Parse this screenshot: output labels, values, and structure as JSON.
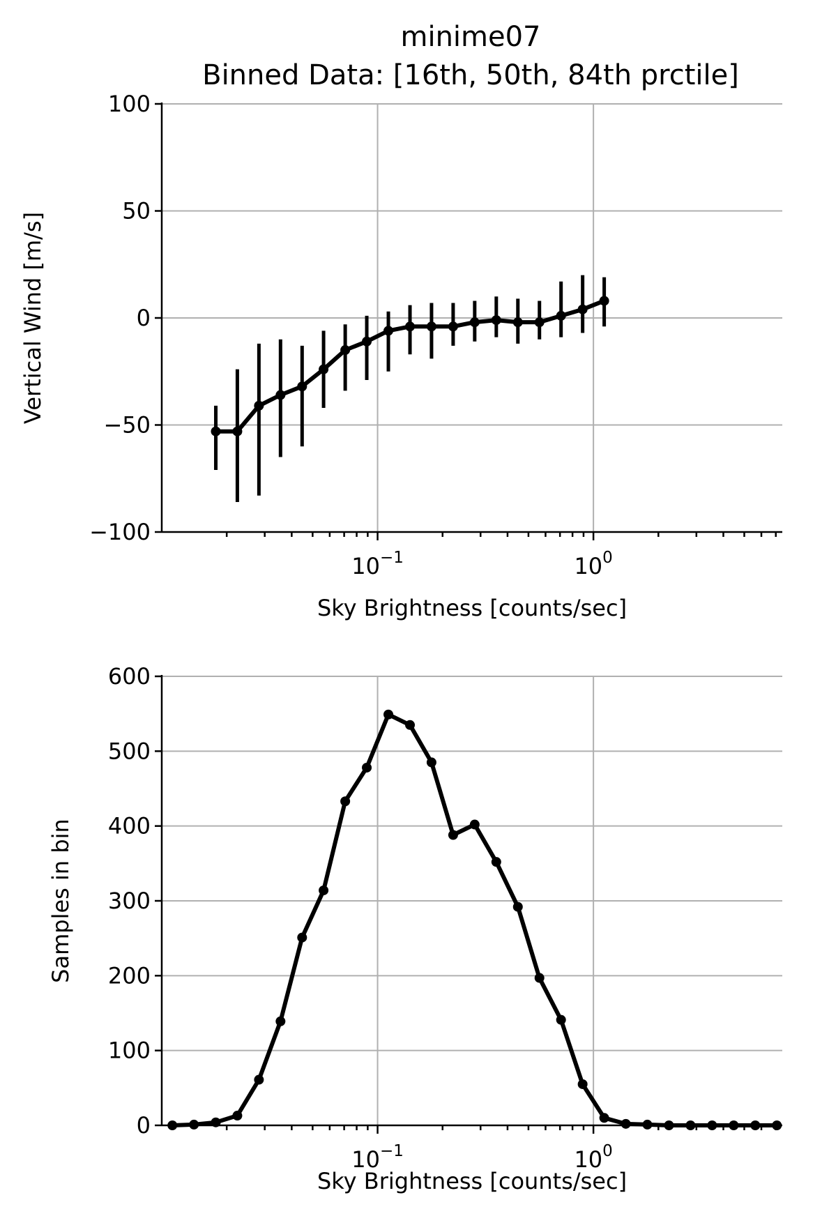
{
  "figure": {
    "title_line1": "minime07",
    "title_line2": "Binned Data: [16th, 50th, 84th prctile]"
  },
  "chart_data": [
    {
      "type": "line",
      "xscale": "log",
      "xlabel": "Sky Brightness [counts/sec]",
      "ylabel": "Vertical Wind [m/s]",
      "xlim": [
        0.01,
        7.5
      ],
      "ylim": [
        -100,
        100
      ],
      "yticks": [
        100,
        50,
        0,
        -50,
        -100
      ],
      "ytick_labels": [
        "100",
        "50",
        "0",
        "−50",
        "−100"
      ],
      "xticks": [
        0.1,
        1
      ],
      "xtick_labels": [
        {
          "base": "10",
          "exp": "−1"
        },
        {
          "base": "10",
          "exp": "0"
        }
      ],
      "grid": true,
      "series": [
        {
          "x": [
            0.0178,
            0.0224,
            0.0282,
            0.0355,
            0.0447,
            0.0562,
            0.0708,
            0.0891,
            0.1122,
            0.1413,
            0.1778,
            0.2239,
            0.2818,
            0.3548,
            0.4467,
            0.5623,
            0.7079,
            0.8913,
            1.122
          ],
          "y": [
            -53,
            -53,
            -41,
            -36,
            -32,
            -24,
            -15,
            -11,
            -6,
            -4,
            -4,
            -4,
            -2,
            -1,
            -2,
            -2,
            1,
            4,
            8
          ],
          "err_low": [
            -71,
            -86,
            -83,
            -65,
            -60,
            -42,
            -34,
            -29,
            -25,
            -17,
            -19,
            -13,
            -11,
            -9,
            -12,
            -10,
            -9,
            -7,
            -4
          ],
          "err_high": [
            -41,
            -24,
            -12,
            -10,
            -13,
            -6,
            -3,
            1,
            3,
            6,
            7,
            7,
            8,
            10,
            9,
            8,
            17,
            20,
            19
          ]
        }
      ]
    },
    {
      "type": "line",
      "xscale": "log",
      "xlabel": "Sky Brightness [counts/sec]",
      "ylabel": "Samples in bin",
      "xlim": [
        0.01,
        7.5
      ],
      "ylim": [
        0,
        600
      ],
      "yticks": [
        600,
        500,
        400,
        300,
        200,
        100,
        0
      ],
      "ytick_labels": [
        "600",
        "500",
        "400",
        "300",
        "200",
        "100",
        "0"
      ],
      "xticks": [
        0.1,
        1
      ],
      "xtick_labels": [
        {
          "base": "10",
          "exp": "−1"
        },
        {
          "base": "10",
          "exp": "0"
        }
      ],
      "grid": true,
      "series": [
        {
          "x": [
            0.0112,
            0.0141,
            0.0178,
            0.0224,
            0.0282,
            0.0355,
            0.0447,
            0.0562,
            0.0708,
            0.0891,
            0.1122,
            0.1413,
            0.1778,
            0.2239,
            0.2818,
            0.3548,
            0.4467,
            0.5623,
            0.7079,
            0.8913,
            1.122,
            1.413,
            1.778,
            2.239,
            2.818,
            3.548,
            4.467,
            5.623,
            7.079
          ],
          "y": [
            0,
            1,
            4,
            13,
            61,
            139,
            251,
            314,
            433,
            478,
            549,
            535,
            485,
            388,
            402,
            352,
            292,
            197,
            141,
            55,
            10,
            2,
            1,
            0,
            0,
            0,
            0,
            0,
            0
          ]
        }
      ]
    }
  ]
}
